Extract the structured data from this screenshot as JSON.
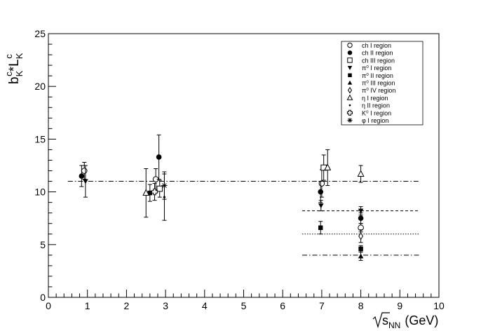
{
  "chart_data": {
    "type": "scatter",
    "title": "",
    "xlabel": "√s_NN (GeV)",
    "xlabel_parts": {
      "radicand": "s",
      "subscript": "NN",
      "unit": "(GeV)"
    },
    "ylabel": "b_K^c*L_K^c",
    "ylabel_parts": {
      "base1": "b",
      "sub1": "K",
      "sup1": "c",
      "mid": "*",
      "base2": "L",
      "sub2": "K",
      "sup2": "c"
    },
    "xlim": [
      0,
      10
    ],
    "ylim": [
      0,
      25
    ],
    "x_ticks": [
      0,
      1,
      2,
      3,
      4,
      5,
      6,
      7,
      8,
      9,
      10
    ],
    "y_ticks": [
      0,
      5,
      10,
      15,
      20,
      25
    ],
    "grid": false,
    "legend_position": "top-right",
    "legend": [
      {
        "label": "ch I region",
        "marker": "open-circle"
      },
      {
        "label": "ch II region",
        "marker": "filled-circle"
      },
      {
        "label": "ch III region",
        "marker": "open-square"
      },
      {
        "label": "π⁰ I region",
        "marker": "filled-triangle-down"
      },
      {
        "label": "π⁰ II region",
        "marker": "filled-square"
      },
      {
        "label": "π⁰ III region",
        "marker": "filled-triangle-up"
      },
      {
        "label": "π⁰ IV region",
        "marker": "open-diamond"
      },
      {
        "label": "η I region",
        "marker": "open-triangle-up"
      },
      {
        "label": "η II region",
        "marker": "small-dot"
      },
      {
        "label": "K⁰ I region",
        "marker": "open-cross"
      },
      {
        "label": "φ I region",
        "marker": "asterisk"
      }
    ],
    "series": [
      {
        "marker": "open-circle",
        "points": [
          {
            "x": 0.92,
            "y": 12.0,
            "err": 0.8
          },
          {
            "x": 2.75,
            "y": 11.2,
            "err": 1.0
          },
          {
            "x": 7.0,
            "y": 10.8,
            "err": 1.3
          },
          {
            "x": 8.0,
            "y": 6.6,
            "err": 0.4
          }
        ]
      },
      {
        "marker": "filled-circle",
        "points": [
          {
            "x": 0.85,
            "y": 11.5,
            "err": 1.0
          },
          {
            "x": 2.83,
            "y": 13.3,
            "err": 2.1
          },
          {
            "x": 6.97,
            "y": 10.0,
            "err": 1.0
          },
          {
            "x": 8.0,
            "y": 7.5,
            "err": 0.5
          }
        ]
      },
      {
        "marker": "open-square",
        "points": [
          {
            "x": 2.85,
            "y": 10.3,
            "err": 0.8
          },
          {
            "x": 7.05,
            "y": 12.3,
            "err": 1.2
          }
        ]
      },
      {
        "marker": "filled-triangle-down",
        "points": [
          {
            "x": 0.95,
            "y": 11.0,
            "err": 1.5
          },
          {
            "x": 6.98,
            "y": 8.7,
            "err": 0.5
          },
          {
            "x": 8.0,
            "y": 8.2,
            "err": 0.4
          }
        ]
      },
      {
        "marker": "filled-square",
        "points": [
          {
            "x": 2.6,
            "y": 9.9,
            "err": 0.8
          },
          {
            "x": 6.97,
            "y": 6.6,
            "err": 0.6
          },
          {
            "x": 8.0,
            "y": 4.6,
            "err": 0.3
          }
        ]
      },
      {
        "marker": "filled-triangle-up",
        "points": [
          {
            "x": 8.0,
            "y": 3.9,
            "err": 0.4
          }
        ]
      },
      {
        "marker": "open-diamond",
        "points": [
          {
            "x": 8.0,
            "y": 5.8,
            "err": 0.6
          }
        ]
      },
      {
        "marker": "open-triangle-up",
        "points": [
          {
            "x": 2.5,
            "y": 9.9,
            "err": 2.3
          },
          {
            "x": 7.15,
            "y": 12.3,
            "err": 1.7
          },
          {
            "x": 8.0,
            "y": 11.7,
            "err": 0.8
          }
        ]
      },
      {
        "marker": "small-dot",
        "points": [
          {
            "x": 2.97,
            "y": 9.5,
            "err": 2.2
          }
        ]
      },
      {
        "marker": "open-cross",
        "points": [
          {
            "x": 2.72,
            "y": 10.0,
            "err": 0.8
          }
        ]
      },
      {
        "marker": "asterisk",
        "points": [
          {
            "x": 2.97,
            "y": 10.6,
            "err": 1.3
          }
        ]
      }
    ],
    "reference_lines": [
      {
        "y": 11.0,
        "x_range": [
          0.5,
          9.5
        ],
        "style": "dash-dot"
      },
      {
        "y": 8.2,
        "x_range": [
          6.5,
          9.5
        ],
        "style": "dashed"
      },
      {
        "y": 6.0,
        "x_range": [
          6.5,
          9.5
        ],
        "style": "dotted"
      },
      {
        "y": 4.0,
        "x_range": [
          6.5,
          9.5
        ],
        "style": "dash-dot"
      }
    ]
  }
}
